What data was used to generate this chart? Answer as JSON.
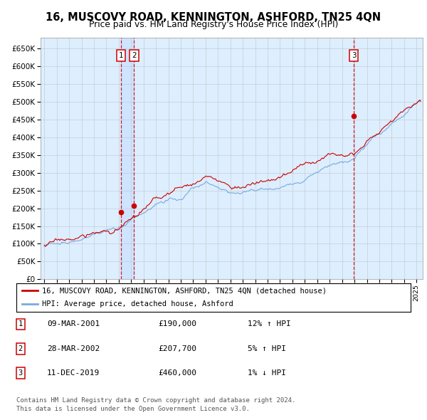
{
  "title": "16, MUSCOVY ROAD, KENNINGTON, ASHFORD, TN25 4QN",
  "subtitle": "Price paid vs. HM Land Registry's House Price Index (HPI)",
  "ylim": [
    0,
    680000
  ],
  "yticks": [
    0,
    50000,
    100000,
    150000,
    200000,
    250000,
    300000,
    350000,
    400000,
    450000,
    500000,
    550000,
    600000,
    650000
  ],
  "xlim_start": 1994.7,
  "xlim_end": 2025.5,
  "sale_points": [
    {
      "year": 2001.19,
      "price": 190000,
      "label": "1"
    },
    {
      "year": 2002.24,
      "price": 207700,
      "label": "2"
    },
    {
      "year": 2019.94,
      "price": 460000,
      "label": "3"
    }
  ],
  "legend_line1": "16, MUSCOVY ROAD, KENNINGTON, ASHFORD, TN25 4QN (detached house)",
  "legend_line2": "HPI: Average price, detached house, Ashford",
  "table_rows": [
    {
      "num": "1",
      "date": "09-MAR-2001",
      "price": "£190,000",
      "pct": "12%",
      "arrow": "↑",
      "label": "HPI"
    },
    {
      "num": "2",
      "date": "28-MAR-2002",
      "price": "£207,700",
      "pct": "5%",
      "arrow": "↑",
      "label": "HPI"
    },
    {
      "num": "3",
      "date": "11-DEC-2019",
      "price": "£460,000",
      "pct": "1%",
      "arrow": "↓",
      "label": "HPI"
    }
  ],
  "footnote1": "Contains HM Land Registry data © Crown copyright and database right 2024.",
  "footnote2": "This data is licensed under the Open Government Licence v3.0.",
  "red_color": "#cc0000",
  "blue_color": "#7aaadd",
  "bg_color": "#ddeeff",
  "grid_color": "#bbbbbb"
}
